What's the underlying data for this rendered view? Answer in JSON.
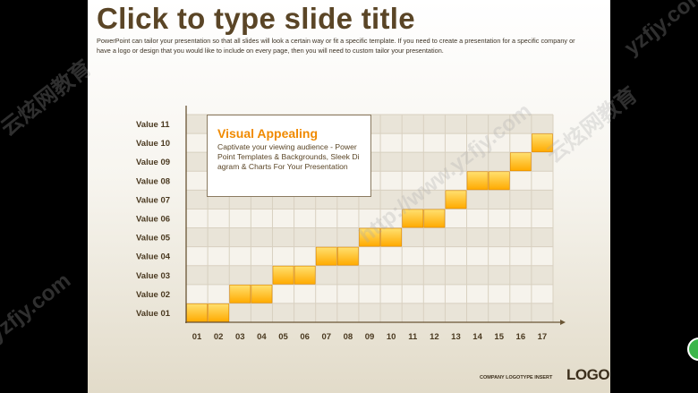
{
  "slide": {
    "title": "Click to type slide title",
    "subtitle": "PowerPoint can tailor your presentation so that all slides will look a certain way or fit a specific template. If you need to create a presentation for a specific company or have a logo or design that you would like to include on every page, then you will need to custom tailor your presentation.",
    "callout_title": "Visual Appealing",
    "callout_body": "Captivate your viewing audience - PowerPoint Templates & Backgrounds, Sleek Diagram & Charts For Your Presentation",
    "footer_text": "COMPANY LOGOTYPE INSERT",
    "logo": "LOGO"
  },
  "watermarks": [
    "云炫网教育",
    "http://www.yzfjy.com",
    "yzfjy.com"
  ],
  "chart_data": {
    "type": "bar",
    "title": "",
    "x_categories": [
      "01",
      "02",
      "03",
      "04",
      "05",
      "06",
      "07",
      "08",
      "09",
      "10",
      "11",
      "12",
      "13",
      "14",
      "15",
      "16",
      "17"
    ],
    "y_categories": [
      "Value 01",
      "Value 02",
      "Value 03",
      "Value 04",
      "Value 05",
      "Value 06",
      "Value 07",
      "Value 08",
      "Value 09",
      "Value 10",
      "Value 11"
    ],
    "values": [
      1,
      1,
      2,
      2,
      3,
      3,
      4,
      4,
      5,
      5,
      6,
      6,
      7,
      8,
      8,
      9,
      10
    ],
    "ylim": [
      0,
      11
    ],
    "grid": true,
    "bar_color": "#ffaa00",
    "bar_color_light": "#ffe070",
    "axis_color": "#6a5535",
    "grid_color": "#d8d0c0"
  }
}
